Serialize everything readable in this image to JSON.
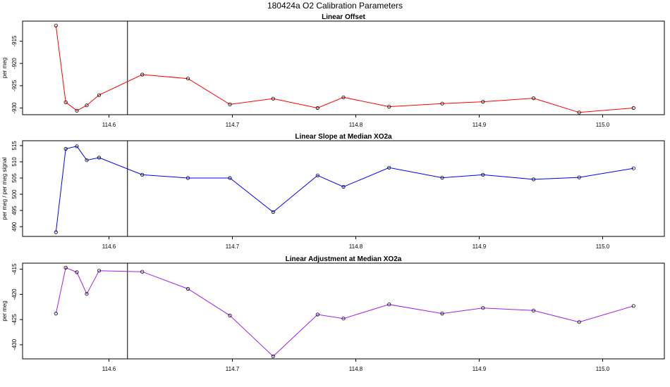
{
  "figure_title": "180424a   O2 Calibration Parameters",
  "chart_data": [
    {
      "type": "line",
      "title": "Linear Offset",
      "ylabel": "per meg",
      "xlim": [
        114.53,
        115.05
      ],
      "ylim": [
        -931.5,
        -910.5
      ],
      "x_ticks": [
        "114.6",
        "114.7",
        "114.8",
        "114.9",
        "115.0"
      ],
      "y_ticks": [
        "-915",
        "-920",
        "-925",
        "-930"
      ],
      "y_tick_values": [
        -915,
        -920,
        -925,
        -930
      ],
      "vline_x": 114.615,
      "color": "#ff0000",
      "series": [
        {
          "x": [
            114.557,
            114.565,
            114.574,
            114.582,
            114.592,
            114.627,
            114.664,
            114.698,
            114.733,
            114.769,
            114.79,
            114.827,
            114.87,
            114.903,
            114.944,
            114.981,
            115.025
          ],
          "values": [
            -911.5,
            -928.7,
            -930.6,
            -929.4,
            -927.1,
            -922.5,
            -923.4,
            -929.2,
            -927.9,
            -930.0,
            -927.6,
            -929.7,
            -929.0,
            -928.6,
            -927.8,
            -931.0,
            -930.0
          ]
        }
      ]
    },
    {
      "type": "line",
      "title": "Linear Slope at Median XO2a",
      "ylabel": "per meg / per meg signal",
      "xlim": [
        114.53,
        115.05
      ],
      "ylim": [
        487,
        516.5
      ],
      "x_ticks": [
        "114.6",
        "114.7",
        "114.8",
        "114.9",
        "115.0"
      ],
      "y_ticks": [
        "490",
        "495",
        "500",
        "505",
        "510",
        "515"
      ],
      "y_tick_values": [
        490,
        495,
        500,
        505,
        510,
        515
      ],
      "vline_x": 114.615,
      "color": "#0000ff",
      "series": [
        {
          "x": [
            114.557,
            114.565,
            114.574,
            114.582,
            114.592,
            114.627,
            114.664,
            114.698,
            114.733,
            114.769,
            114.79,
            114.827,
            114.87,
            114.903,
            114.944,
            114.981,
            115.025
          ],
          "values": [
            488.3,
            514.0,
            514.8,
            510.5,
            511.3,
            506.0,
            505.0,
            505.0,
            494.5,
            505.8,
            502.3,
            508.2,
            505.1,
            506.0,
            504.6,
            505.2,
            508.0
          ]
        }
      ]
    },
    {
      "type": "line",
      "title": "Linear Adjustment at Median XO2a",
      "ylabel": "per meg",
      "xlim": [
        114.53,
        115.05
      ],
      "ylim": [
        -432.8,
        -413.8
      ],
      "x_ticks": [
        "114.6",
        "114.7",
        "114.8",
        "114.9",
        "115.0"
      ],
      "y_ticks": [
        "-415",
        "-420",
        "-425",
        "-430"
      ],
      "y_tick_values": [
        -415,
        -420,
        -425,
        -430
      ],
      "vline_x": 114.615,
      "color": "#a020f0",
      "series": [
        {
          "x": [
            114.557,
            114.565,
            114.574,
            114.582,
            114.592,
            114.627,
            114.664,
            114.698,
            114.733,
            114.769,
            114.79,
            114.827,
            114.87,
            114.903,
            114.944,
            114.981,
            115.025
          ],
          "values": [
            -423.8,
            -414.7,
            -415.6,
            -419.9,
            -415.3,
            -415.5,
            -418.9,
            -424.2,
            -432.3,
            -424.0,
            -424.8,
            -422.0,
            -423.8,
            -422.7,
            -423.2,
            -425.5,
            -422.3
          ]
        }
      ]
    }
  ]
}
